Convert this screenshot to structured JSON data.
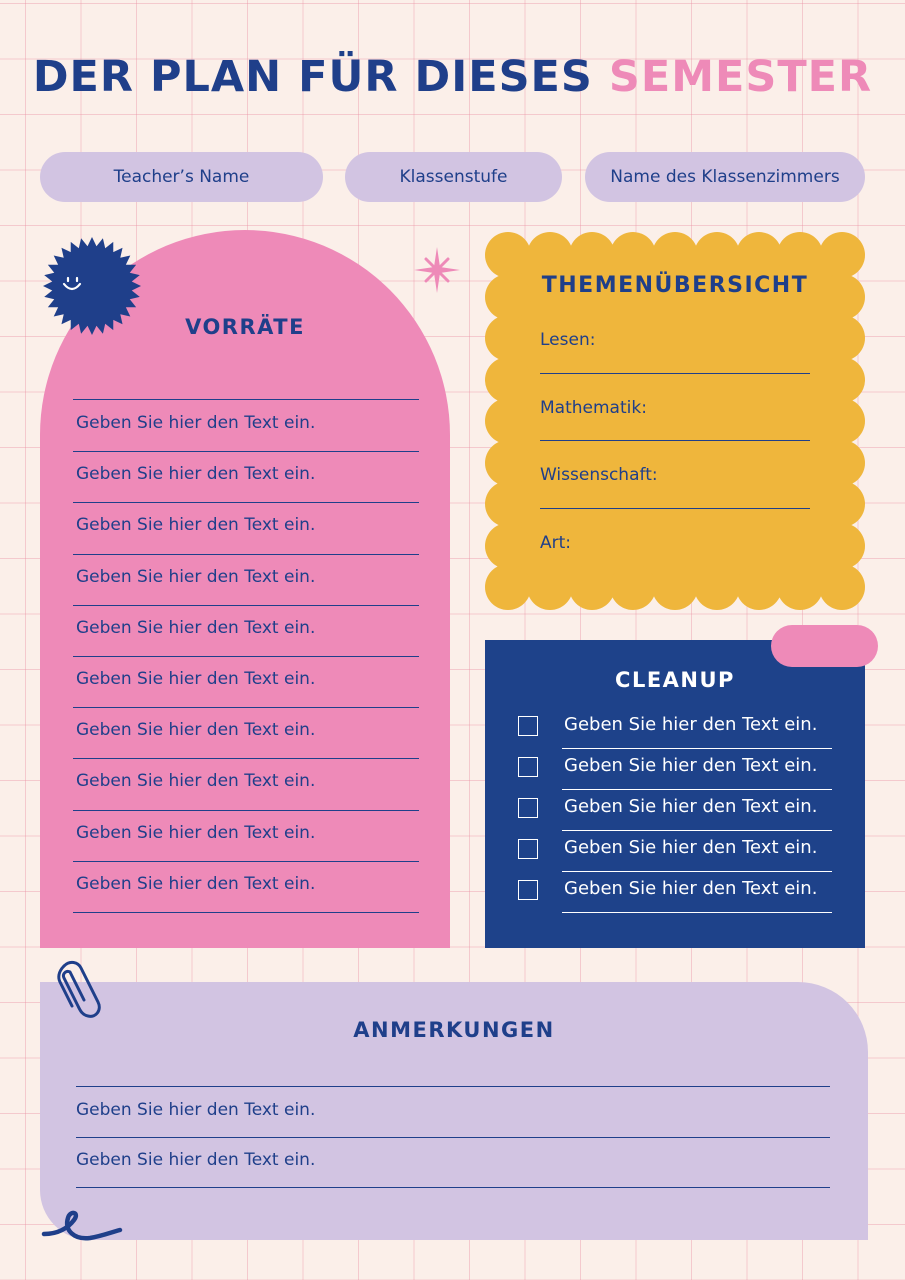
{
  "title": {
    "part1": "DER PLAN FÜR DIESES",
    "part2": "SEMESTER"
  },
  "header_pills": [
    "Teacher’s Name",
    "Klassenstufe",
    "Name des Klassenzimmers"
  ],
  "supplies": {
    "title": "VORRÄTE",
    "items": [
      "Geben Sie hier den Text ein.",
      "Geben Sie hier den Text ein.",
      "Geben Sie hier den Text ein.",
      "Geben Sie hier den Text ein.",
      "Geben Sie hier den Text ein.",
      "Geben Sie hier den Text ein.",
      "Geben Sie hier den Text ein.",
      "Geben Sie hier den Text ein.",
      "Geben Sie hier den Text ein.",
      "Geben Sie hier den Text ein."
    ]
  },
  "themes": {
    "title": "THEMENÜBERSICHT",
    "labels": [
      "Lesen:",
      "Mathematik:",
      "Wissenschaft:",
      "Art:"
    ]
  },
  "cleanup": {
    "title": "CLEANUP",
    "items": [
      "Geben Sie hier den Text ein.",
      "Geben Sie hier den Text ein.",
      "Geben Sie hier den Text ein.",
      "Geben Sie hier den Text ein.",
      "Geben Sie hier den Text ein."
    ]
  },
  "notes": {
    "title": "ANMERKUNGEN",
    "items": [
      "Geben Sie hier den Text ein.",
      "Geben Sie hier den Text ein."
    ]
  },
  "colors": {
    "background": "#fbefe9",
    "navy": "#1f3f8a",
    "pink": "#ee8ab8",
    "yellow": "#efb63c",
    "lavender": "#d2c4e2",
    "cleanup_navy": "#1e428a"
  },
  "icons": [
    "smiley-sun-badge-icon",
    "sparkle-star-icon",
    "paperclip-icon",
    "squiggle-icon",
    "cloud-bubbles-icon"
  ]
}
